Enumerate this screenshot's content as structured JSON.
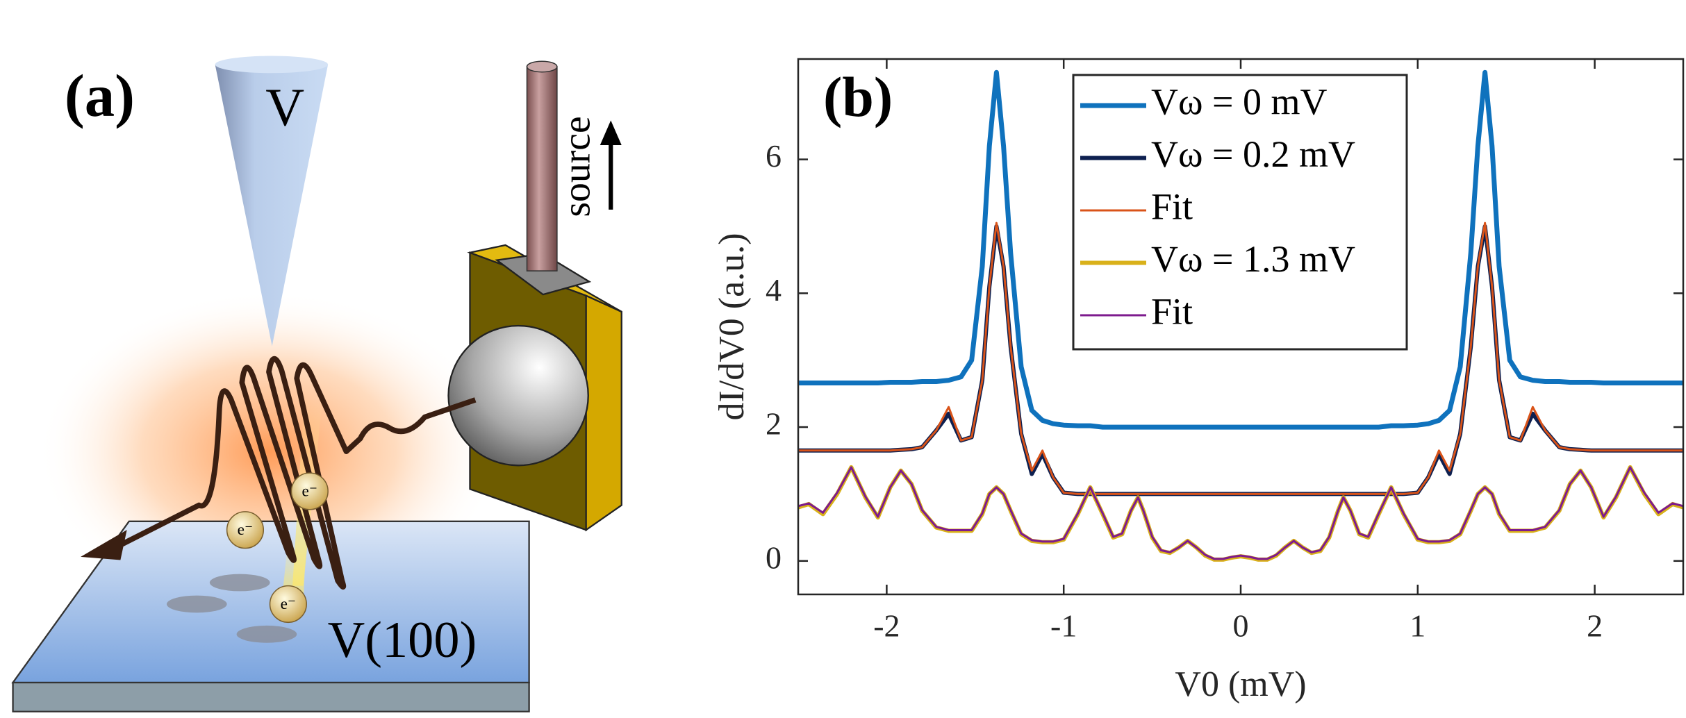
{
  "panel_a": {
    "label": "(a)",
    "tip": "V",
    "source": "source",
    "surface": "V(100)",
    "electrons": [
      "e⁻",
      "e⁻",
      "e⁻"
    ]
  },
  "chart_data": {
    "type": "line",
    "panel_label": "(b)",
    "xlabel": "V0 (mV)",
    "ylabel": "dI/dV0 (a.u.)",
    "xlim": [
      -2.5,
      2.5
    ],
    "ylim": [
      -0.5,
      7.5
    ],
    "xticks": [
      -2,
      -1,
      0,
      1,
      2
    ],
    "yticks": [
      0,
      2,
      4,
      6
    ],
    "grid": false,
    "legend": "upper center",
    "x": [
      -2.5,
      -2.44,
      -2.36,
      -2.28,
      -2.2,
      -2.12,
      -2.05,
      -1.98,
      -1.92,
      -1.86,
      -1.8,
      -1.72,
      -1.65,
      -1.58,
      -1.52,
      -1.46,
      -1.42,
      -1.38,
      -1.34,
      -1.3,
      -1.24,
      -1.18,
      -1.12,
      -1.06,
      -1,
      -0.92,
      -0.85,
      -0.78,
      -0.72,
      -0.67,
      -0.62,
      -0.58,
      -0.55,
      -0.5,
      -0.45,
      -0.4,
      -0.35,
      -0.3,
      -0.25,
      -0.2,
      -0.15,
      -0.1,
      -0.05,
      0,
      0.05,
      0.1,
      0.15,
      0.2,
      0.25,
      0.3,
      0.35,
      0.4,
      0.45,
      0.5,
      0.55,
      0.58,
      0.62,
      0.67,
      0.72,
      0.78,
      0.85,
      0.92,
      1,
      1.06,
      1.12,
      1.18,
      1.24,
      1.3,
      1.34,
      1.38,
      1.42,
      1.46,
      1.52,
      1.58,
      1.65,
      1.72,
      1.8,
      1.86,
      1.92,
      1.98,
      2.05,
      2.12,
      2.2,
      2.28,
      2.36,
      2.44,
      2.5
    ],
    "series": [
      {
        "name": "Vω = 0 mV",
        "color": "#0f72bd",
        "linewidth": 7,
        "values": [
          2.66,
          2.66,
          2.66,
          2.66,
          2.66,
          2.66,
          2.66,
          2.67,
          2.67,
          2.67,
          2.68,
          2.68,
          2.7,
          2.75,
          3,
          4.4,
          6.2,
          7.3,
          6.2,
          4.6,
          2.9,
          2.25,
          2.1,
          2.05,
          2.03,
          2.02,
          2.02,
          2,
          2,
          2,
          2,
          2,
          2,
          2,
          2,
          2,
          2,
          2,
          2,
          2,
          2,
          2,
          2,
          2,
          2,
          2,
          2,
          2,
          2,
          2,
          2,
          2,
          2,
          2,
          2,
          2,
          2,
          2,
          2,
          2,
          2.02,
          2.02,
          2.03,
          2.05,
          2.1,
          2.25,
          2.9,
          4.6,
          6.2,
          7.3,
          6.2,
          4.4,
          3,
          2.75,
          2.7,
          2.68,
          2.68,
          2.67,
          2.67,
          2.67,
          2.66,
          2.66,
          2.66,
          2.66,
          2.66,
          2.66,
          2.66
        ]
      },
      {
        "name": "Vω = 0.2 mV",
        "color": "#0e2050",
        "linewidth": 6,
        "values": [
          1.65,
          1.65,
          1.65,
          1.65,
          1.65,
          1.65,
          1.65,
          1.65,
          1.66,
          1.67,
          1.7,
          1.95,
          2.2,
          1.8,
          1.85,
          2.7,
          4.1,
          5,
          4.4,
          3.2,
          1.9,
          1.3,
          1.6,
          1.25,
          1.02,
          1,
          1,
          1,
          1,
          1,
          1,
          1,
          1,
          1,
          1,
          1,
          1,
          1,
          1,
          1,
          1,
          1,
          1,
          1,
          1,
          1,
          1,
          1,
          1,
          1,
          1,
          1,
          1,
          1,
          1,
          1,
          1,
          1,
          1,
          1,
          1,
          1,
          1.02,
          1.25,
          1.6,
          1.3,
          1.9,
          3.2,
          4.4,
          5,
          4.1,
          2.7,
          1.85,
          1.8,
          2.2,
          1.95,
          1.7,
          1.67,
          1.66,
          1.65,
          1.65,
          1.65,
          1.65,
          1.65,
          1.65,
          1.65,
          1.65
        ]
      },
      {
        "name": "Fit",
        "color": "#d95319",
        "linewidth": 3,
        "values": [
          1.65,
          1.65,
          1.65,
          1.65,
          1.65,
          1.65,
          1.65,
          1.65,
          1.66,
          1.67,
          1.7,
          1.95,
          2.3,
          1.8,
          1.85,
          2.7,
          4.1,
          5.05,
          4.4,
          3.2,
          1.9,
          1.35,
          1.65,
          1.25,
          1.02,
          1,
          1,
          1,
          1,
          1,
          1,
          1,
          1,
          1,
          1,
          1,
          1,
          1,
          1,
          1,
          1,
          1,
          1,
          1,
          1,
          1,
          1,
          1,
          1,
          1,
          1,
          1,
          1,
          1,
          1,
          1,
          1,
          1,
          1,
          1,
          1,
          1,
          1.02,
          1.25,
          1.65,
          1.35,
          1.9,
          3.2,
          4.4,
          5.05,
          4.1,
          2.7,
          1.85,
          1.8,
          2.3,
          1.95,
          1.7,
          1.67,
          1.66,
          1.65,
          1.65,
          1.65,
          1.65,
          1.65,
          1.65,
          1.65,
          1.65
        ]
      },
      {
        "name": "Vω = 1.3 mV",
        "color": "#d9b11a",
        "linewidth": 6,
        "values": [
          0.8,
          0.85,
          0.7,
          1,
          1.4,
          0.95,
          0.65,
          1.1,
          1.35,
          1.15,
          0.75,
          0.5,
          0.45,
          0.45,
          0.45,
          0.7,
          1,
          1.1,
          1,
          0.75,
          0.4,
          0.3,
          0.28,
          0.28,
          0.32,
          0.7,
          1.1,
          0.7,
          0.35,
          0.4,
          0.75,
          0.95,
          0.75,
          0.35,
          0.15,
          0.12,
          0.2,
          0.3,
          0.2,
          0.08,
          0.02,
          0.02,
          0.05,
          0.07,
          0.05,
          0.02,
          0.02,
          0.08,
          0.2,
          0.3,
          0.2,
          0.12,
          0.15,
          0.35,
          0.75,
          0.95,
          0.75,
          0.4,
          0.35,
          0.7,
          1.1,
          0.7,
          0.32,
          0.28,
          0.28,
          0.3,
          0.4,
          0.75,
          1,
          1.1,
          1,
          0.7,
          0.45,
          0.45,
          0.45,
          0.5,
          0.75,
          1.15,
          1.35,
          1.1,
          0.65,
          0.95,
          1.4,
          1,
          0.7,
          0.85,
          0.8
        ]
      },
      {
        "name": "Fit",
        "color": "#7e1b8e",
        "linewidth": 3,
        "values": [
          0.82,
          0.86,
          0.72,
          1.02,
          1.4,
          0.96,
          0.66,
          1.1,
          1.35,
          1.15,
          0.76,
          0.51,
          0.46,
          0.46,
          0.46,
          0.71,
          1,
          1.1,
          1,
          0.76,
          0.41,
          0.31,
          0.29,
          0.29,
          0.33,
          0.71,
          1.1,
          0.71,
          0.36,
          0.41,
          0.75,
          0.95,
          0.75,
          0.36,
          0.16,
          0.13,
          0.2,
          0.3,
          0.2,
          0.09,
          0.03,
          0.03,
          0.06,
          0.08,
          0.06,
          0.03,
          0.03,
          0.09,
          0.2,
          0.3,
          0.2,
          0.13,
          0.16,
          0.36,
          0.75,
          0.95,
          0.75,
          0.41,
          0.36,
          0.71,
          1.1,
          0.71,
          0.33,
          0.29,
          0.29,
          0.31,
          0.41,
          0.76,
          1,
          1.1,
          1,
          0.71,
          0.46,
          0.46,
          0.46,
          0.51,
          0.76,
          1.15,
          1.35,
          1.1,
          0.66,
          0.96,
          1.4,
          1.02,
          0.72,
          0.86,
          0.82
        ]
      }
    ]
  }
}
